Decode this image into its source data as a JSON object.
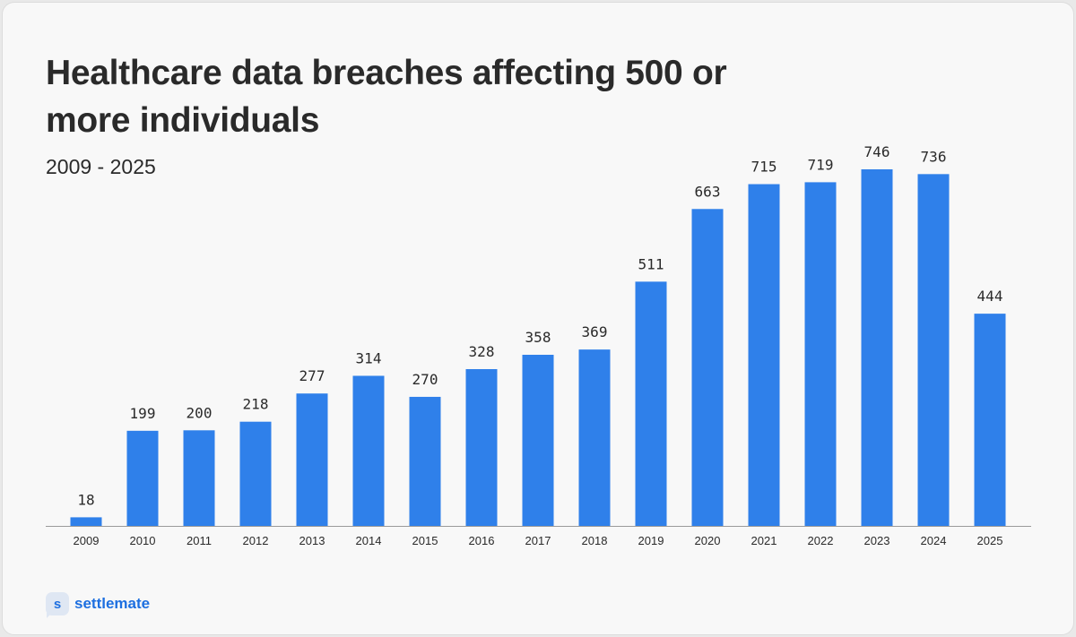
{
  "chart_data": {
    "type": "bar",
    "title": "Healthcare data breaches affecting 500 or more individuals",
    "subtitle": "2009 - 2025",
    "categories": [
      "2009",
      "2010",
      "2011",
      "2012",
      "2013",
      "2014",
      "2015",
      "2016",
      "2017",
      "2018",
      "2019",
      "2020",
      "2021",
      "2022",
      "2023",
      "2024",
      "2025"
    ],
    "values": [
      18,
      199,
      200,
      218,
      277,
      314,
      270,
      328,
      358,
      369,
      511,
      663,
      715,
      719,
      746,
      736,
      444
    ],
    "xlabel": "",
    "ylabel": "",
    "ylim": [
      0,
      746
    ],
    "grid": false,
    "legend": "none",
    "colors": {
      "bar": "#2f80ea",
      "text": "#2a2a2a",
      "brand": "#1d6fe0"
    }
  },
  "brand": {
    "icon": "s-logo-icon",
    "logo_letter": "s",
    "name": "settlemate"
  }
}
